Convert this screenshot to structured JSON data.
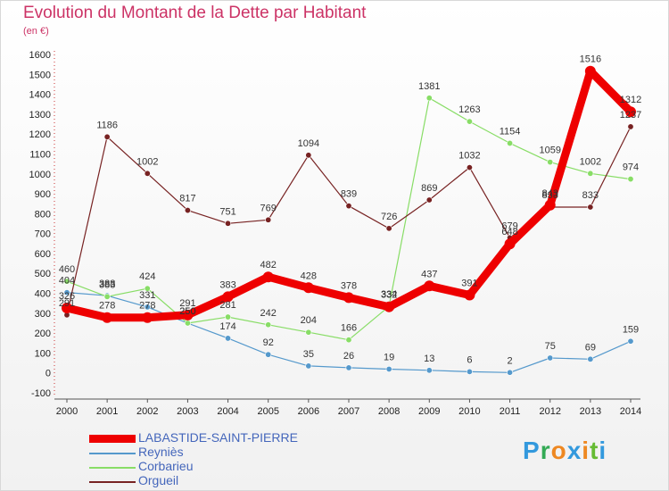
{
  "header": {
    "title": "Evolution du Montant de la Dette par Habitant",
    "subtitle": "(en €)"
  },
  "logo": {
    "text": "Proxiti",
    "colors": [
      "#3399dd",
      "#33aa55",
      "#ee8822",
      "#3399dd",
      "#ee8822",
      "#66bb33",
      "#3399dd"
    ]
  },
  "chart_data": {
    "type": "line",
    "title": "Evolution du Montant de la Dette par Habitant",
    "subtitle": "(en €)",
    "x": [
      "2000",
      "2001",
      "2002",
      "2003",
      "2004",
      "2005",
      "2006",
      "2007",
      "2008",
      "2009",
      "2010",
      "2011",
      "2012",
      "2013",
      "2014"
    ],
    "ylim": [
      -100,
      1600
    ],
    "yticks": [
      -100,
      0,
      100,
      200,
      300,
      400,
      500,
      600,
      700,
      800,
      900,
      1000,
      1100,
      1200,
      1300,
      1400,
      1500,
      1600
    ],
    "grid": false,
    "legend": "bottom-left",
    "series": [
      {
        "name": "LABASTIDE-SAINT-PIERRE",
        "color": "#ee0000",
        "values": [
          326,
          278,
          278,
          291,
          383,
          482,
          428,
          378,
          332,
          437,
          391,
          648,
          843,
          1516,
          1312
        ]
      },
      {
        "name": "Reyniès",
        "color": "#5599cc",
        "values": [
          404,
          388,
          331,
          250,
          174,
          92,
          35,
          26,
          19,
          13,
          6,
          2,
          75,
          69,
          159
        ]
      },
      {
        "name": "Corbarieu",
        "color": "#88dd66",
        "values": [
          460,
          383,
          424,
          250,
          281,
          242,
          204,
          166,
          334,
          1381,
          1263,
          1154,
          1059,
          1002,
          974
        ]
      },
      {
        "name": "Orgueil",
        "color": "#772222",
        "values": [
          291,
          1186,
          1002,
          817,
          751,
          769,
          1094,
          839,
          726,
          869,
          1032,
          679,
          833,
          833,
          1237
        ]
      }
    ]
  }
}
